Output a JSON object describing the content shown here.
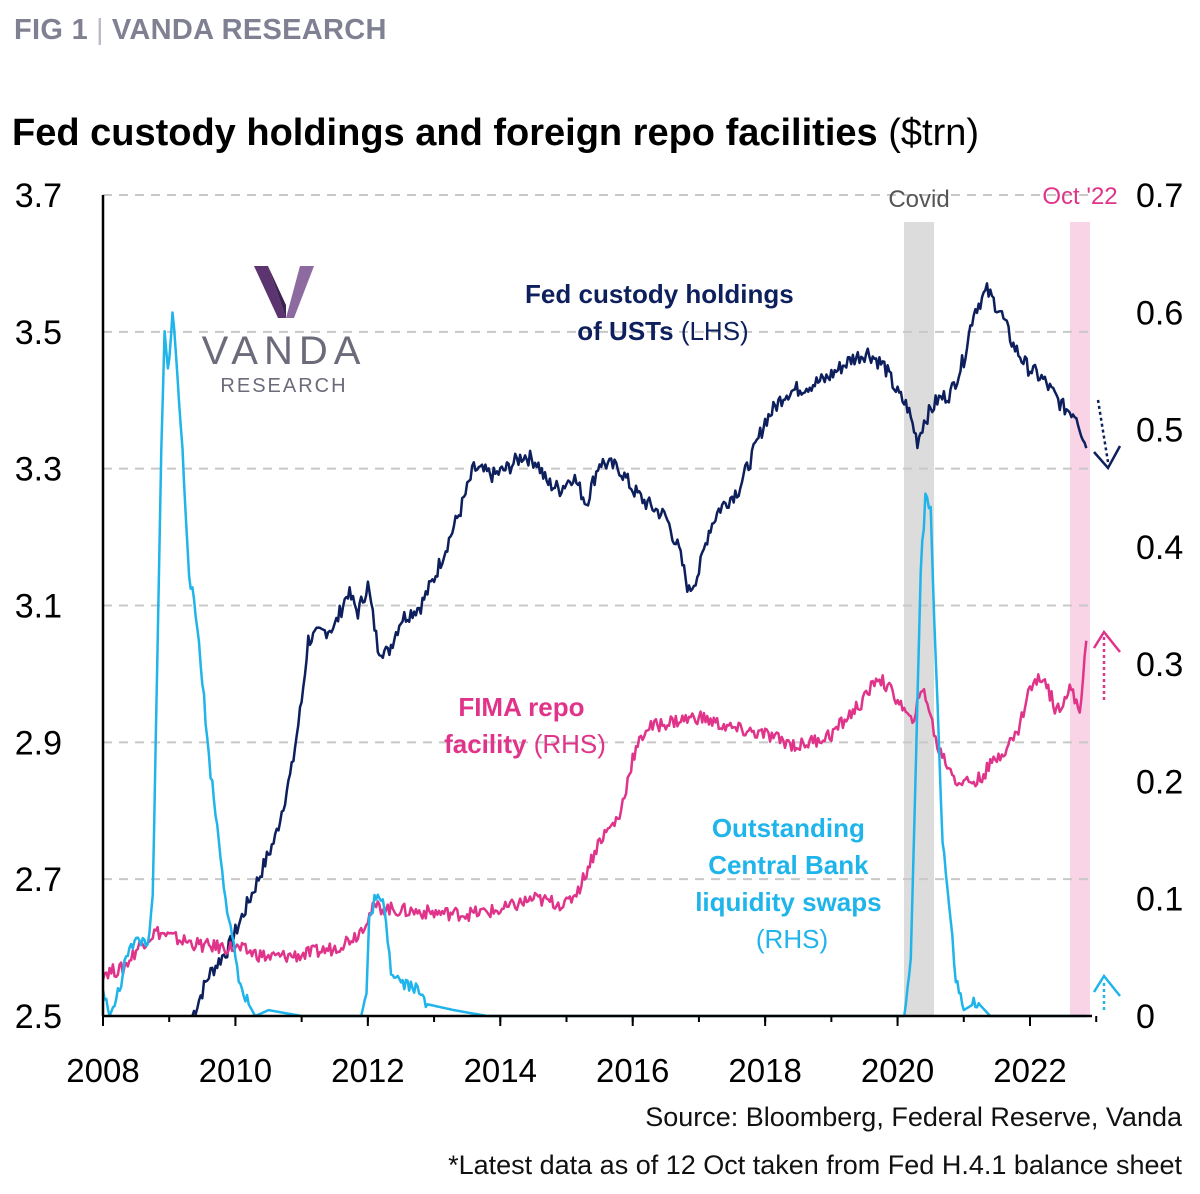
{
  "header": {
    "fig": "FIG 1",
    "sep": "|",
    "brand": "VANDA RESEARCH"
  },
  "title": {
    "main": "Fed custody holdings and foreign repo facilities",
    "unit": "($trn)"
  },
  "logo": {
    "word": "VANDA",
    "sub": "RESEARCH"
  },
  "colors": {
    "custody": "#0d1f5c",
    "fima": "#e0338a",
    "swaps": "#1fb4ea",
    "covid": "#dcdcdc",
    "oct22": "#f8d4e6",
    "grid": "#c8c8c8",
    "oct22_label": "#e0338a"
  },
  "source": "Source: Bloomberg, Federal Reserve, Vanda",
  "footnote": "*Latest data as of 12 Oct taken from Fed H.4.1 balance sheet",
  "chart_data": {
    "type": "line",
    "x_ticks": [
      "2008",
      "2010",
      "2012",
      "2014",
      "2016",
      "2018",
      "2020",
      "2022"
    ],
    "y_left_ticks": [
      "2.5",
      "2.7",
      "2.9",
      "3.1",
      "3.3",
      "3.5",
      "3.7"
    ],
    "y_right_ticks": [
      "0",
      "0.1",
      "0.2",
      "0.3",
      "0.4",
      "0.5",
      "0.6",
      "0.7"
    ],
    "y_left_range": [
      2.5,
      3.7
    ],
    "y_right_range": [
      0,
      0.7
    ],
    "x_range": [
      2008,
      2023.5
    ],
    "grid": true,
    "shaded_regions": [
      {
        "label": "Covid",
        "x": [
          2020.2,
          2020.6
        ]
      },
      {
        "label": "Oct '22",
        "x": [
          2022.7,
          2022.95
        ]
      }
    ],
    "series": [
      {
        "name_bold": "Fed custody holdings of USTs",
        "name_line1": "Fed custody holdings",
        "name_line2": "of USTs",
        "name_suffix": "(LHS)",
        "axis": "left",
        "points": [
          [
            2009.35,
            2.5
          ],
          [
            2009.6,
            2.56
          ],
          [
            2009.9,
            2.6
          ],
          [
            2010.3,
            2.69
          ],
          [
            2010.6,
            2.76
          ],
          [
            2010.85,
            2.86
          ],
          [
            2011.0,
            2.96
          ],
          [
            2011.1,
            3.05
          ],
          [
            2011.3,
            3.06
          ],
          [
            2011.5,
            3.07
          ],
          [
            2011.7,
            3.12
          ],
          [
            2011.85,
            3.09
          ],
          [
            2012.0,
            3.13
          ],
          [
            2012.15,
            3.04
          ],
          [
            2012.3,
            3.03
          ],
          [
            2012.5,
            3.08
          ],
          [
            2012.8,
            3.1
          ],
          [
            2013.0,
            3.14
          ],
          [
            2013.2,
            3.19
          ],
          [
            2013.4,
            3.24
          ],
          [
            2013.6,
            3.3
          ],
          [
            2013.9,
            3.29
          ],
          [
            2014.1,
            3.3
          ],
          [
            2014.35,
            3.32
          ],
          [
            2014.55,
            3.31
          ],
          [
            2014.7,
            3.28
          ],
          [
            2014.9,
            3.27
          ],
          [
            2015.1,
            3.29
          ],
          [
            2015.3,
            3.25
          ],
          [
            2015.5,
            3.31
          ],
          [
            2015.8,
            3.3
          ],
          [
            2016.0,
            3.27
          ],
          [
            2016.2,
            3.25
          ],
          [
            2016.5,
            3.23
          ],
          [
            2016.7,
            3.18
          ],
          [
            2016.85,
            3.12
          ],
          [
            2017.0,
            3.15
          ],
          [
            2017.15,
            3.21
          ],
          [
            2017.3,
            3.24
          ],
          [
            2017.6,
            3.27
          ],
          [
            2017.85,
            3.33
          ],
          [
            2018.0,
            3.37
          ],
          [
            2018.3,
            3.41
          ],
          [
            2018.6,
            3.42
          ],
          [
            2018.9,
            3.43
          ],
          [
            2019.3,
            3.46
          ],
          [
            2019.55,
            3.47
          ],
          [
            2019.8,
            3.45
          ],
          [
            2020.0,
            3.41
          ],
          [
            2020.15,
            3.39
          ],
          [
            2020.3,
            3.34
          ],
          [
            2020.4,
            3.37
          ],
          [
            2020.6,
            3.4
          ],
          [
            2020.8,
            3.41
          ],
          [
            2021.0,
            3.46
          ],
          [
            2021.15,
            3.53
          ],
          [
            2021.35,
            3.56
          ],
          [
            2021.55,
            3.53
          ],
          [
            2021.75,
            3.48
          ],
          [
            2021.95,
            3.45
          ],
          [
            2022.2,
            3.43
          ],
          [
            2022.5,
            3.39
          ],
          [
            2022.7,
            3.38
          ],
          [
            2022.85,
            3.33
          ]
        ]
      },
      {
        "name_bold": "FIMA repo facility",
        "name_line1": "FIMA repo",
        "name_line2": "facility",
        "name_suffix": "(RHS)",
        "axis": "right",
        "points": [
          [
            2008.0,
            0.037
          ],
          [
            2008.3,
            0.04
          ],
          [
            2008.55,
            0.06
          ],
          [
            2008.8,
            0.072
          ],
          [
            2009.1,
            0.066
          ],
          [
            2009.5,
            0.06
          ],
          [
            2010.0,
            0.058
          ],
          [
            2010.5,
            0.05
          ],
          [
            2011.0,
            0.052
          ],
          [
            2011.5,
            0.058
          ],
          [
            2011.85,
            0.07
          ],
          [
            2012.1,
            0.093
          ],
          [
            2012.5,
            0.09
          ],
          [
            2013.0,
            0.088
          ],
          [
            2013.5,
            0.087
          ],
          [
            2014.0,
            0.09
          ],
          [
            2014.5,
            0.1
          ],
          [
            2015.0,
            0.095
          ],
          [
            2015.2,
            0.11
          ],
          [
            2015.5,
            0.15
          ],
          [
            2015.8,
            0.17
          ],
          [
            2016.0,
            0.22
          ],
          [
            2016.2,
            0.245
          ],
          [
            2016.5,
            0.25
          ],
          [
            2017.0,
            0.255
          ],
          [
            2017.5,
            0.245
          ],
          [
            2018.0,
            0.24
          ],
          [
            2018.5,
            0.23
          ],
          [
            2019.0,
            0.24
          ],
          [
            2019.5,
            0.27
          ],
          [
            2019.7,
            0.29
          ],
          [
            2020.0,
            0.27
          ],
          [
            2020.2,
            0.25
          ],
          [
            2020.4,
            0.28
          ],
          [
            2020.6,
            0.23
          ],
          [
            2020.9,
            0.2
          ],
          [
            2021.2,
            0.2
          ],
          [
            2021.5,
            0.22
          ],
          [
            2021.8,
            0.24
          ],
          [
            2022.0,
            0.28
          ],
          [
            2022.2,
            0.29
          ],
          [
            2022.4,
            0.26
          ],
          [
            2022.6,
            0.28
          ],
          [
            2022.75,
            0.26
          ],
          [
            2022.85,
            0.32
          ]
        ]
      },
      {
        "name_bold": "Outstanding Central Bank liquidity swaps",
        "name_line1": "Outstanding",
        "name_line2": "Central Bank",
        "name_line3": "liquidity swaps",
        "name_suffix": "(RHS)",
        "axis": "right",
        "points": [
          [
            2008.0,
            0.022
          ],
          [
            2008.1,
            0.0
          ],
          [
            2008.25,
            0.022
          ],
          [
            2008.4,
            0.062
          ],
          [
            2008.7,
            0.065
          ],
          [
            2008.75,
            0.1
          ],
          [
            2008.82,
            0.3
          ],
          [
            2008.88,
            0.48
          ],
          [
            2008.93,
            0.58
          ],
          [
            2008.98,
            0.55
          ],
          [
            2009.05,
            0.6
          ],
          [
            2009.12,
            0.55
          ],
          [
            2009.2,
            0.48
          ],
          [
            2009.3,
            0.38
          ],
          [
            2009.45,
            0.32
          ],
          [
            2009.6,
            0.22
          ],
          [
            2009.75,
            0.15
          ],
          [
            2009.9,
            0.08
          ],
          [
            2010.0,
            0.05
          ],
          [
            2010.1,
            0.02
          ],
          [
            2010.3,
            0.0
          ],
          [
            2010.5,
            0.005
          ],
          [
            2011.0,
            0.0
          ],
          [
            2011.5,
            0.0
          ],
          [
            2011.9,
            0.0
          ],
          [
            2011.98,
            0.02
          ],
          [
            2012.02,
            0.08
          ],
          [
            2012.1,
            0.1
          ],
          [
            2012.25,
            0.095
          ],
          [
            2012.35,
            0.04
          ],
          [
            2012.5,
            0.03
          ],
          [
            2012.7,
            0.025
          ],
          [
            2012.9,
            0.01
          ],
          [
            2013.3,
            0.005
          ],
          [
            2013.8,
            0.0
          ],
          [
            2016.0,
            0.0
          ],
          [
            2018.0,
            0.0
          ],
          [
            2020.1,
            0.0
          ],
          [
            2020.2,
            0.05
          ],
          [
            2020.28,
            0.22
          ],
          [
            2020.35,
            0.38
          ],
          [
            2020.42,
            0.44
          ],
          [
            2020.5,
            0.43
          ],
          [
            2020.58,
            0.3
          ],
          [
            2020.68,
            0.15
          ],
          [
            2020.8,
            0.08
          ],
          [
            2020.88,
            0.03
          ],
          [
            2021.0,
            0.005
          ],
          [
            2021.2,
            0.012
          ],
          [
            2021.4,
            0.0
          ],
          [
            2022.0,
            0.0
          ],
          [
            2022.85,
            0.0
          ]
        ]
      }
    ]
  }
}
